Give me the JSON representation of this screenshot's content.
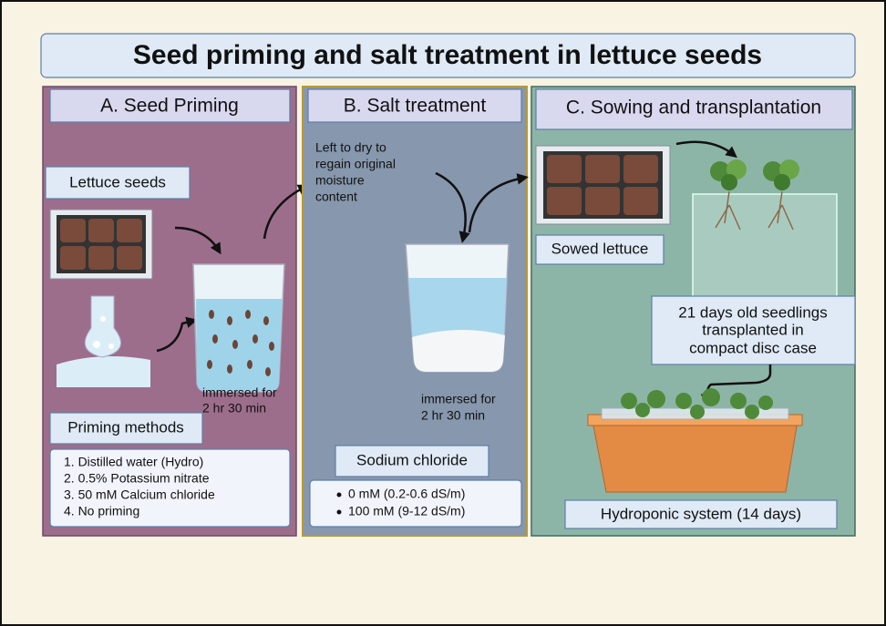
{
  "title": "Seed priming and salt treatment in lettuce seeds",
  "panels": [
    {
      "header": "A. Seed Priming",
      "seed_label": "Lettuce seeds",
      "immersion": [
        "immersed for",
        "2 hr 30 min"
      ],
      "methods_title": "Priming methods",
      "methods": [
        "1.  Distilled water (Hydro)",
        "2.  0.5% Potassium nitrate",
        "3.  50 mM Calcium chloride",
        "4.  No priming"
      ]
    },
    {
      "header": "B. Salt treatment",
      "note": [
        "Left to dry to",
        "regain original",
        "moisture",
        "content"
      ],
      "immersion": [
        "immersed for",
        "2 hr 30 min"
      ],
      "salt_title": "Sodium chloride",
      "levels": [
        "0 mM  (0.2-0.6 dS/m)",
        "100 mM  (9-12 dS/m)"
      ]
    },
    {
      "header": "C. Sowing and transplantation",
      "sowed_label": "Sowed lettuce",
      "seedling_note": [
        "21 days old seedlings",
        "transplanted in",
        "compact disc case"
      ],
      "system_label": "Hydroponic system (14 days)"
    }
  ]
}
